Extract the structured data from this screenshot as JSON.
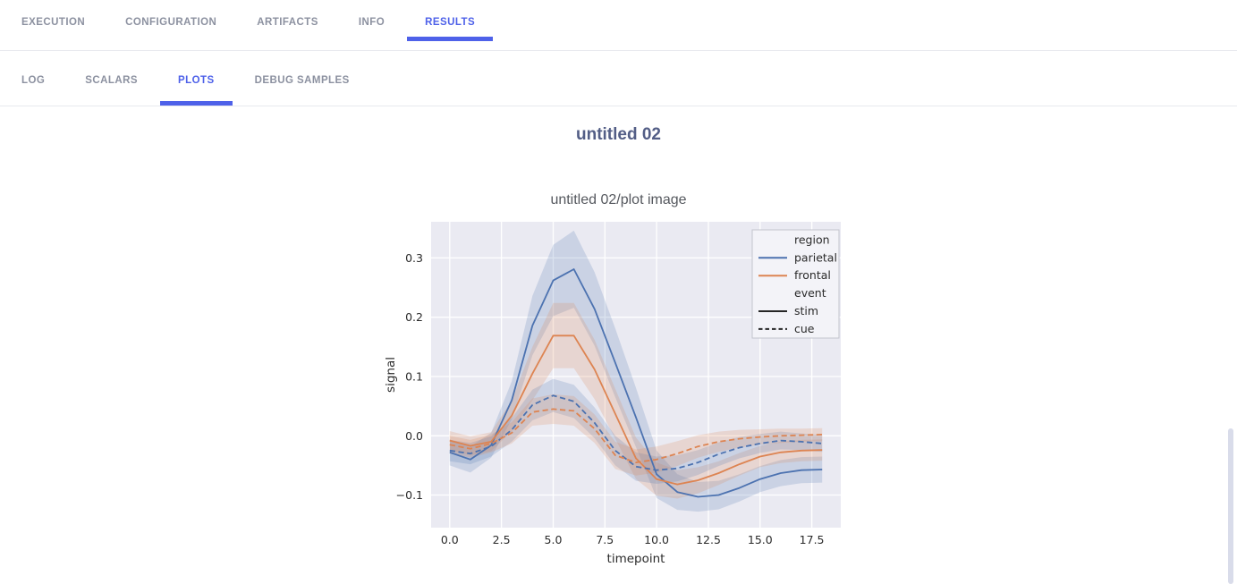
{
  "ui": {
    "accent_color": "#4e61e9",
    "inactive_tab_color": "#8c91a0",
    "section_title_color": "#535e86"
  },
  "nav": {
    "primary": [
      {
        "label": "EXECUTION",
        "active": false
      },
      {
        "label": "CONFIGURATION",
        "active": false
      },
      {
        "label": "ARTIFACTS",
        "active": false
      },
      {
        "label": "INFO",
        "active": false
      },
      {
        "label": "RESULTS",
        "active": true
      }
    ],
    "secondary": [
      {
        "label": "LOG",
        "active": false
      },
      {
        "label": "SCALARS",
        "active": false
      },
      {
        "label": "PLOTS",
        "active": true
      },
      {
        "label": "DEBUG SAMPLES",
        "active": false
      }
    ]
  },
  "content": {
    "section_title": "untitled 02",
    "plot_title": "untitled 02/plot image"
  },
  "chart_data": {
    "type": "line",
    "title": "untitled 02/plot image",
    "xlabel": "timepoint",
    "ylabel": "signal",
    "xlim": [
      -0.9,
      18.9
    ],
    "ylim": [
      -0.155,
      0.361
    ],
    "xticks": [
      0,
      2.5,
      5,
      7.5,
      10,
      12.5,
      15,
      17.5
    ],
    "yticks": [
      -0.1,
      0,
      0.1,
      0.2,
      0.3
    ],
    "grid": true,
    "plot_bg": "#eaeaf2",
    "grid_color": "#ffffff",
    "text_color": "#2b2b2b",
    "band_alpha": 0.2,
    "x": [
      0,
      1,
      2,
      3,
      4,
      5,
      6,
      7,
      8,
      9,
      10,
      11,
      12,
      13,
      14,
      15,
      16,
      17,
      18
    ],
    "series": [
      {
        "name": "parietal-stim",
        "region": "parietal",
        "event": "stim",
        "color": "#4c72b0",
        "dash": false,
        "values": [
          -0.028,
          -0.04,
          -0.016,
          0.06,
          0.186,
          0.262,
          0.281,
          0.214,
          0.123,
          0.031,
          -0.065,
          -0.095,
          -0.103,
          -0.1,
          -0.088,
          -0.073,
          -0.063,
          -0.058,
          -0.057
        ],
        "ci": [
          0.022,
          0.022,
          0.021,
          0.032,
          0.05,
          0.06,
          0.065,
          0.062,
          0.058,
          0.05,
          0.04,
          0.03,
          0.025,
          0.024,
          0.023,
          0.022,
          0.022,
          0.022,
          0.022
        ]
      },
      {
        "name": "frontal-stim",
        "region": "frontal",
        "event": "stim",
        "color": "#dd8452",
        "dash": false,
        "values": [
          -0.008,
          -0.017,
          -0.01,
          0.034,
          0.105,
          0.169,
          0.169,
          0.112,
          0.037,
          -0.038,
          -0.073,
          -0.082,
          -0.075,
          -0.063,
          -0.048,
          -0.035,
          -0.028,
          -0.025,
          -0.024
        ],
        "ci": [
          0.016,
          0.016,
          0.016,
          0.026,
          0.045,
          0.055,
          0.055,
          0.05,
          0.042,
          0.035,
          0.028,
          0.024,
          0.022,
          0.02,
          0.019,
          0.018,
          0.018,
          0.018,
          0.018
        ]
      },
      {
        "name": "parietal-cue",
        "region": "parietal",
        "event": "cue",
        "color": "#4c72b0",
        "dash": true,
        "values": [
          -0.025,
          -0.03,
          -0.018,
          0.01,
          0.052,
          0.068,
          0.058,
          0.022,
          -0.025,
          -0.052,
          -0.058,
          -0.055,
          -0.045,
          -0.031,
          -0.02,
          -0.013,
          -0.008,
          -0.01,
          -0.013
        ],
        "ci": [
          0.018,
          0.018,
          0.017,
          0.02,
          0.026,
          0.028,
          0.028,
          0.026,
          0.025,
          0.024,
          0.023,
          0.022,
          0.021,
          0.02,
          0.018,
          0.016,
          0.015,
          0.014,
          0.014
        ]
      },
      {
        "name": "frontal-cue",
        "region": "frontal",
        "event": "cue",
        "color": "#dd8452",
        "dash": true,
        "values": [
          -0.015,
          -0.022,
          -0.013,
          0.005,
          0.04,
          0.045,
          0.042,
          0.012,
          -0.033,
          -0.045,
          -0.04,
          -0.03,
          -0.018,
          -0.01,
          -0.005,
          -0.002,
          0,
          0.001,
          0.002
        ],
        "ci": [
          0.015,
          0.015,
          0.015,
          0.018,
          0.023,
          0.025,
          0.025,
          0.024,
          0.023,
          0.022,
          0.022,
          0.021,
          0.019,
          0.017,
          0.015,
          0.013,
          0.012,
          0.011,
          0.011
        ]
      }
    ],
    "legend": {
      "position": "upper right",
      "entries": [
        {
          "label": "region",
          "type": "header"
        },
        {
          "label": "parietal",
          "type": "line",
          "color": "#4c72b0",
          "dash": false
        },
        {
          "label": "frontal",
          "type": "line",
          "color": "#dd8452",
          "dash": false
        },
        {
          "label": "event",
          "type": "header"
        },
        {
          "label": "stim",
          "type": "line",
          "color": "#262626",
          "dash": false
        },
        {
          "label": "cue",
          "type": "line",
          "color": "#262626",
          "dash": true
        }
      ]
    }
  }
}
